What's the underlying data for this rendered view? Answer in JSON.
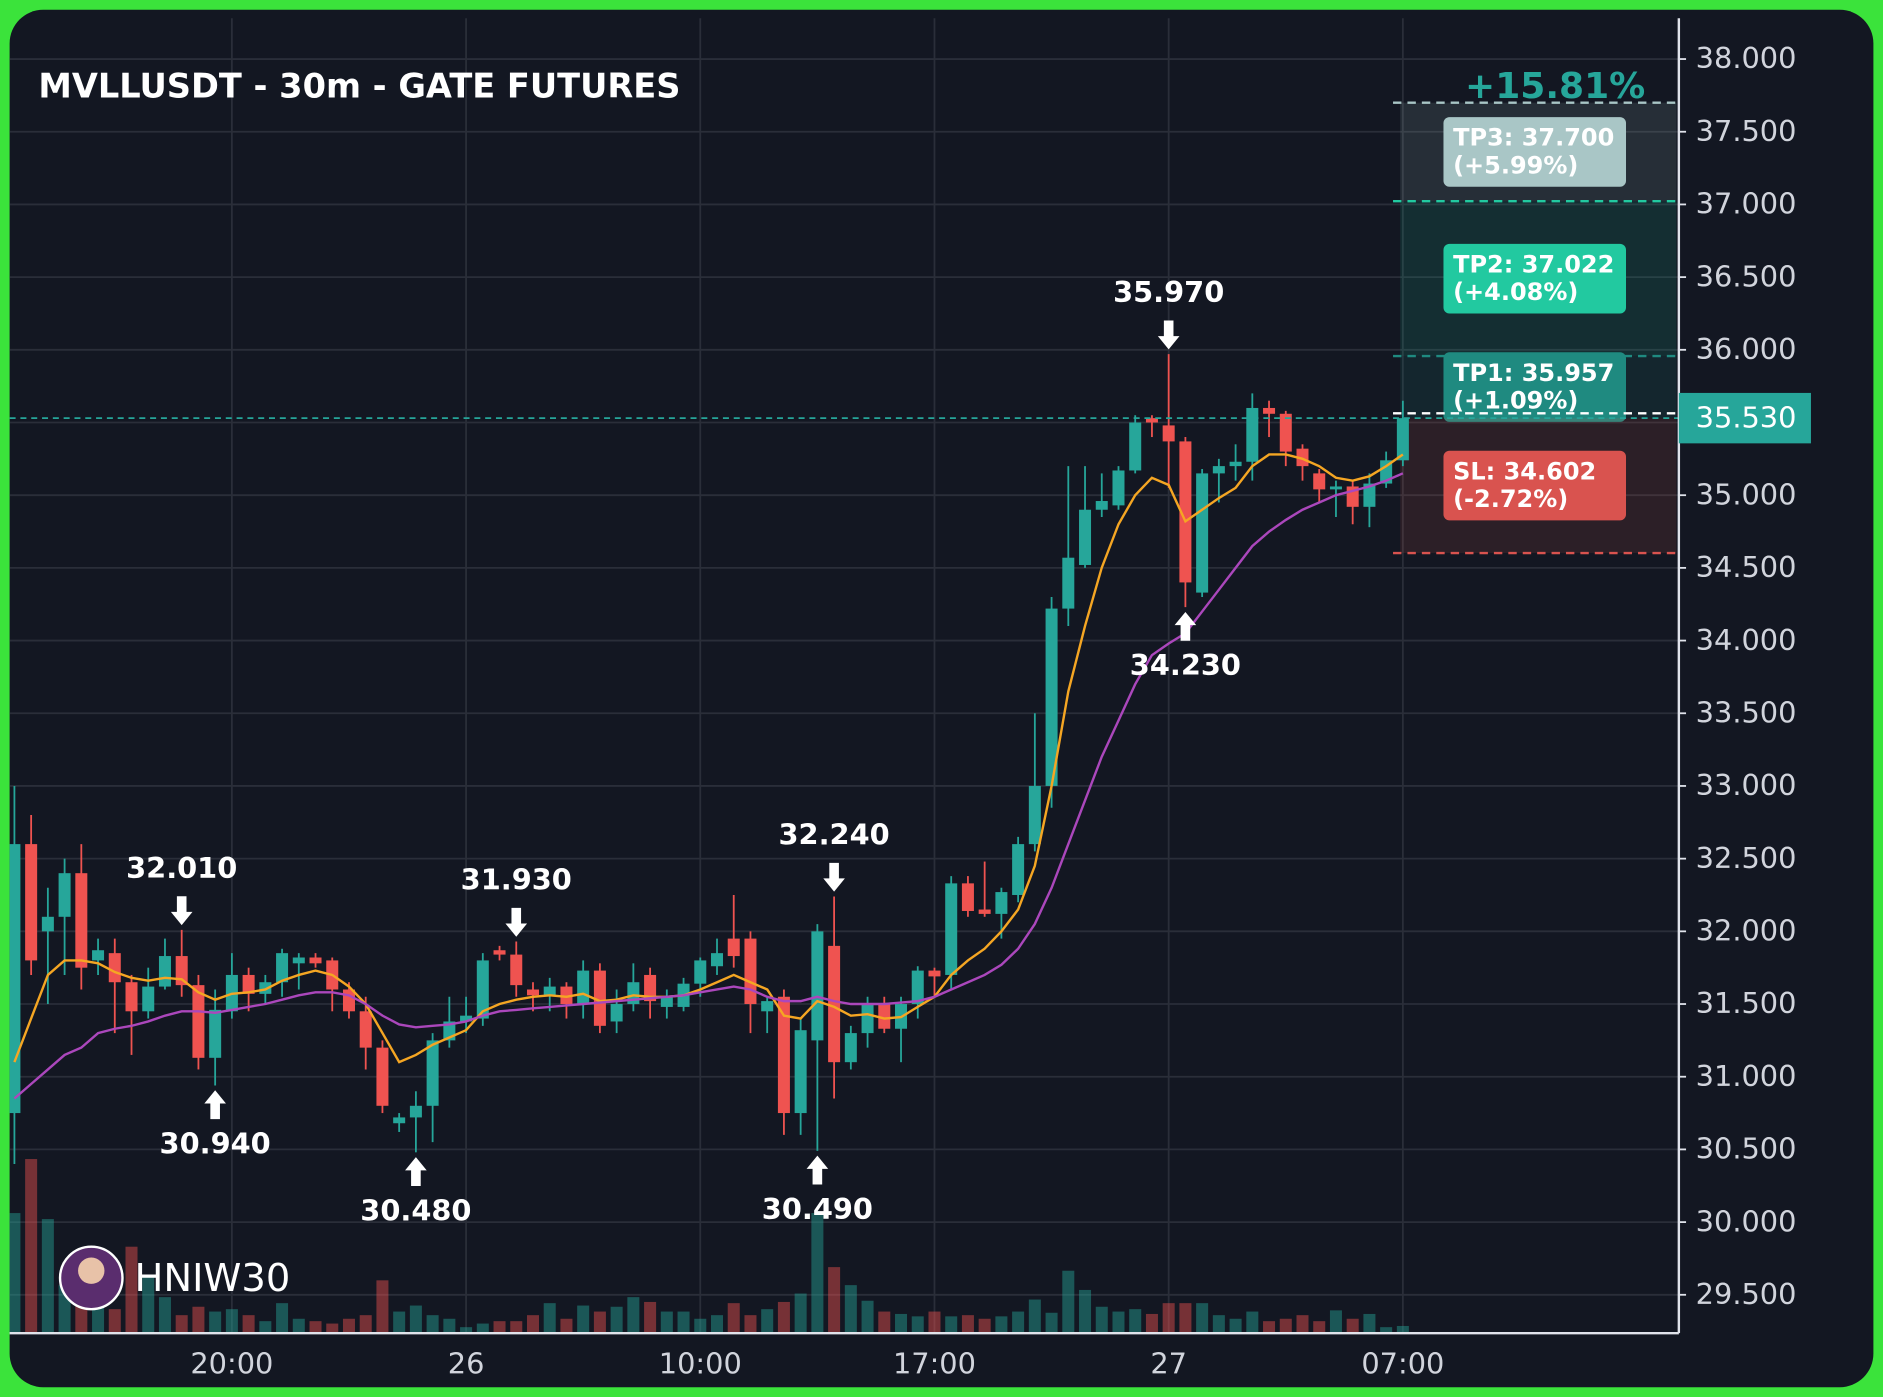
{
  "chart_data": {
    "type": "candlestick",
    "title": "MVLLUSDT - 30m - GATE FUTURES",
    "total_change": "+15.81%",
    "watermark": "HNIW30",
    "categories": [
      null,
      null,
      null,
      null,
      null,
      null,
      null,
      null,
      null,
      null,
      null,
      null,
      null,
      "20:00",
      null,
      null,
      null,
      null,
      null,
      null,
      null,
      null,
      null,
      null,
      null,
      null,
      null,
      "26",
      null,
      null,
      null,
      null,
      null,
      null,
      null,
      null,
      null,
      null,
      null,
      null,
      null,
      "10:00",
      null,
      null,
      null,
      null,
      null,
      null,
      null,
      null,
      null,
      null,
      null,
      null,
      null,
      "17:00",
      null,
      null,
      null,
      null,
      null,
      null,
      null,
      null,
      null,
      null,
      null,
      null,
      null,
      "27",
      null,
      null,
      null,
      null,
      null,
      null,
      null,
      null,
      null,
      null,
      null,
      null,
      null,
      "07:00"
    ],
    "open": [
      30.75,
      32.6,
      32.0,
      32.1,
      32.4,
      31.8,
      31.85,
      31.65,
      31.45,
      31.62,
      31.83,
      31.63,
      31.13,
      31.45,
      31.7,
      31.57,
      31.65,
      31.78,
      31.82,
      31.8,
      31.6,
      31.45,
      31.2,
      30.68,
      30.72,
      30.8,
      31.25,
      31.38,
      31.4,
      31.87,
      31.84,
      31.6,
      31.56,
      31.62,
      31.5,
      31.73,
      31.38,
      31.5,
      31.7,
      31.48,
      31.48,
      31.64,
      31.76,
      31.95,
      31.95,
      31.45,
      31.55,
      30.75,
      31.25,
      31.9,
      31.1,
      31.3,
      31.5,
      31.33,
      31.5,
      31.73,
      31.7,
      32.33,
      32.15,
      32.12,
      32.25,
      32.6,
      33.0,
      34.22,
      34.52,
      34.9,
      34.93,
      35.17,
      35.53,
      35.48,
      35.37,
      34.33,
      35.15,
      35.2,
      35.23,
      35.6,
      35.56,
      35.32,
      35.15,
      35.04,
      35.06,
      34.92,
      35.08,
      35.24
    ],
    "high": [
      33.0,
      32.8,
      32.3,
      32.5,
      32.6,
      31.95,
      31.95,
      31.7,
      31.75,
      31.95,
      32.01,
      31.7,
      31.6,
      31.85,
      31.75,
      31.7,
      31.88,
      31.85,
      31.85,
      31.82,
      31.65,
      31.55,
      31.25,
      30.75,
      30.9,
      31.3,
      31.55,
      31.55,
      31.85,
      31.9,
      31.93,
      31.65,
      31.68,
      31.65,
      31.8,
      31.78,
      31.6,
      31.78,
      31.75,
      31.6,
      31.68,
      31.82,
      31.95,
      32.25,
      32.0,
      31.55,
      31.6,
      31.4,
      32.05,
      32.24,
      31.35,
      31.55,
      31.55,
      31.55,
      31.76,
      31.75,
      32.38,
      32.38,
      32.48,
      32.3,
      32.65,
      33.5,
      34.3,
      35.2,
      35.2,
      35.15,
      35.2,
      35.55,
      35.55,
      35.97,
      35.4,
      35.18,
      35.25,
      35.35,
      35.7,
      35.65,
      35.58,
      35.35,
      35.18,
      35.1,
      35.1,
      35.15,
      35.3,
      35.65
    ],
    "low": [
      30.4,
      31.7,
      31.5,
      31.7,
      31.6,
      31.7,
      31.3,
      31.15,
      31.4,
      31.6,
      31.55,
      31.05,
      30.94,
      31.4,
      31.45,
      31.5,
      31.55,
      31.6,
      31.75,
      31.45,
      31.4,
      31.05,
      30.75,
      30.62,
      30.48,
      30.55,
      31.2,
      31.3,
      31.35,
      31.8,
      31.55,
      31.45,
      31.45,
      31.4,
      31.4,
      31.3,
      31.3,
      31.45,
      31.4,
      31.4,
      31.45,
      31.55,
      31.7,
      31.75,
      31.3,
      31.3,
      30.6,
      30.6,
      30.49,
      30.85,
      31.05,
      31.2,
      31.3,
      31.1,
      31.4,
      31.55,
      31.6,
      32.1,
      32.1,
      31.95,
      32.2,
      32.55,
      32.85,
      34.1,
      34.5,
      34.85,
      34.9,
      35.15,
      35.4,
      35.05,
      34.23,
      34.3,
      34.95,
      35.1,
      35.1,
      35.4,
      35.2,
      35.1,
      34.95,
      34.85,
      34.8,
      34.78,
      35.05,
      35.2
    ],
    "close": [
      32.6,
      31.8,
      32.1,
      32.4,
      31.75,
      31.87,
      31.65,
      31.45,
      31.62,
      31.83,
      31.63,
      31.13,
      31.46,
      31.7,
      31.57,
      31.65,
      31.85,
      31.82,
      31.78,
      31.6,
      31.45,
      31.2,
      30.8,
      30.72,
      30.8,
      31.25,
      31.38,
      31.42,
      31.8,
      31.84,
      31.63,
      31.56,
      31.62,
      31.5,
      31.73,
      31.35,
      31.5,
      31.65,
      31.52,
      31.55,
      31.64,
      31.8,
      31.85,
      31.83,
      31.5,
      31.52,
      30.75,
      31.32,
      32.0,
      31.1,
      31.3,
      31.5,
      31.33,
      31.5,
      31.73,
      31.69,
      32.33,
      32.14,
      32.12,
      32.27,
      32.6,
      33.0,
      34.22,
      34.57,
      34.9,
      34.96,
      35.17,
      35.5,
      35.5,
      35.37,
      34.4,
      35.15,
      35.2,
      35.23,
      35.6,
      35.56,
      35.3,
      35.2,
      35.04,
      35.06,
      34.92,
      35.08,
      35.24,
      35.53
    ],
    "volume": [
      100,
      145,
      95,
      40,
      35,
      30,
      20,
      72,
      48,
      30,
      15,
      22,
      18,
      20,
      15,
      10,
      25,
      12,
      10,
      8,
      12,
      15,
      44,
      18,
      23,
      15,
      12,
      5,
      8,
      10,
      10,
      15,
      25,
      12,
      23,
      18,
      22,
      30,
      26,
      18,
      18,
      12,
      15,
      25,
      15,
      20,
      26,
      33,
      100,
      55,
      40,
      27,
      18,
      16,
      14,
      18,
      14,
      15,
      12,
      14,
      18,
      28,
      17,
      52,
      36,
      22,
      18,
      20,
      16,
      25,
      25,
      25,
      15,
      12,
      18,
      10,
      12,
      15,
      10,
      19,
      12,
      16,
      5,
      6
    ],
    "up_color": "#26a69a",
    "down_color": "#ef5350",
    "ma_lines": [
      {
        "color": "#f5a623",
        "values": [
          31.1,
          31.4,
          31.7,
          31.8,
          31.8,
          31.78,
          31.72,
          31.68,
          31.66,
          31.68,
          31.67,
          31.58,
          31.53,
          31.57,
          31.58,
          31.6,
          31.66,
          31.7,
          31.73,
          31.7,
          31.62,
          31.5,
          31.3,
          31.1,
          31.15,
          31.22,
          31.27,
          31.32,
          31.45,
          31.5,
          31.53,
          31.55,
          31.56,
          31.55,
          31.57,
          31.52,
          31.53,
          31.56,
          31.55,
          31.55,
          31.56,
          31.6,
          31.65,
          31.7,
          31.65,
          31.6,
          31.42,
          31.4,
          31.52,
          31.48,
          31.42,
          31.43,
          31.4,
          31.41,
          31.48,
          31.55,
          31.7,
          31.8,
          31.88,
          32.0,
          32.15,
          32.45,
          33.0,
          33.65,
          34.1,
          34.5,
          34.8,
          35.0,
          35.12,
          35.07,
          34.82,
          34.9,
          34.98,
          35.05,
          35.2,
          35.28,
          35.28,
          35.25,
          35.2,
          35.12,
          35.1,
          35.13,
          35.2,
          35.28
        ]
      },
      {
        "color": "#ab47bc",
        "values": [
          30.85,
          30.95,
          31.05,
          31.15,
          31.2,
          31.3,
          31.33,
          31.35,
          31.38,
          31.42,
          31.45,
          31.45,
          31.44,
          31.46,
          31.48,
          31.5,
          31.53,
          31.56,
          31.58,
          31.58,
          31.56,
          31.5,
          31.42,
          31.36,
          31.34,
          31.35,
          31.36,
          31.38,
          31.42,
          31.45,
          31.46,
          31.47,
          31.48,
          31.49,
          31.5,
          31.51,
          31.52,
          31.53,
          31.54,
          31.55,
          31.56,
          31.58,
          31.6,
          31.62,
          31.6,
          31.55,
          31.52,
          31.52,
          31.55,
          31.52,
          31.5,
          31.5,
          31.5,
          31.51,
          31.52,
          31.55,
          31.6,
          31.65,
          31.7,
          31.77,
          31.88,
          32.05,
          32.3,
          32.6,
          32.9,
          33.2,
          33.45,
          33.7,
          33.9,
          33.98,
          34.05,
          34.2,
          34.35,
          34.5,
          34.65,
          34.75,
          34.83,
          34.9,
          34.95,
          35.0,
          35.03,
          35.06,
          35.1,
          35.15
        ]
      }
    ],
    "extremes": [
      {
        "kind": "high",
        "value": 32.01,
        "label": "32.010"
      },
      {
        "kind": "low",
        "value": 30.94,
        "label": "30.940"
      },
      {
        "kind": "high",
        "value": 31.93,
        "label": "31.930"
      },
      {
        "kind": "low",
        "value": 30.48,
        "label": "30.480"
      },
      {
        "kind": "high",
        "value": 32.24,
        "label": "32.240"
      },
      {
        "kind": "low",
        "value": 30.49,
        "label": "30.490"
      },
      {
        "kind": "high",
        "value": 35.97,
        "label": "35.970"
      },
      {
        "kind": "low",
        "value": 34.23,
        "label": "34.230"
      }
    ],
    "last_price": {
      "value": 35.53,
      "label": "35.530"
    },
    "targets": [
      {
        "label": "TP3: 37.700",
        "change": "(+5.99%)",
        "price": 37.7,
        "color": "#a9c6c6"
      },
      {
        "label": "TP2: 37.022",
        "change": "(+4.08%)",
        "price": 37.022,
        "color": "#22c9a0"
      },
      {
        "label": "TP1: 35.957",
        "change": "(+1.09%)",
        "price": 35.957,
        "color": "#1f8a80"
      },
      {
        "label": "SL: 34.602",
        "change": "(-2.72%)",
        "price": 34.602,
        "color": "#d9534f"
      }
    ],
    "ylim": [
      29.236,
      38.281
    ],
    "yticks": [
      {
        "value": 29.5,
        "label": "29.500"
      },
      {
        "value": 30,
        "label": "30.000"
      },
      {
        "value": 30.5,
        "label": "30.500"
      },
      {
        "value": 31,
        "label": "31.000"
      },
      {
        "value": 31.5,
        "label": "31.500"
      },
      {
        "value": 32,
        "label": "32.000"
      },
      {
        "value": 32.5,
        "label": "32.500"
      },
      {
        "value": 33,
        "label": "33.000"
      },
      {
        "value": 33.5,
        "label": "33.500"
      },
      {
        "value": 34,
        "label": "34.000"
      },
      {
        "value": 34.5,
        "label": "34.500"
      },
      {
        "value": 35,
        "label": "35.000"
      },
      {
        "value": 35.5,
        "label": "35.500"
      },
      {
        "value": 36,
        "label": "36.000"
      },
      {
        "value": 36.5,
        "label": "36.500"
      },
      {
        "value": 37,
        "label": "37.000"
      },
      {
        "value": 37.5,
        "label": "37.500"
      },
      {
        "value": 38,
        "label": "38.000"
      }
    ],
    "grid": true
  }
}
